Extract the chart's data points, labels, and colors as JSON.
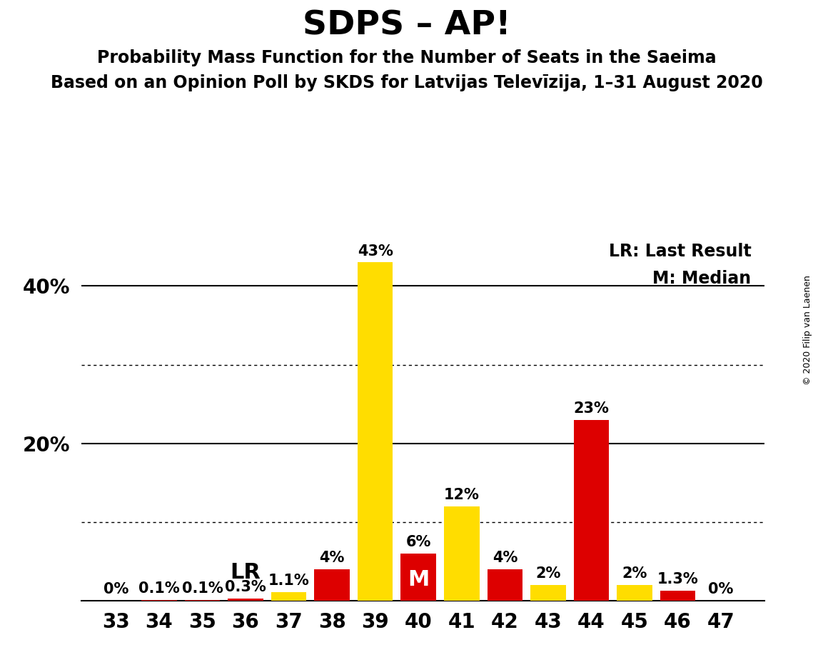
{
  "title": "SDPS – AP!",
  "subtitle1": "Probability Mass Function for the Number of Seats in the Saeima",
  "subtitle2": "Based on an Opinion Poll by SKDS for Latvijas Televīzija, 1–31 August 2020",
  "copyright": "© 2020 Filip van Laenen",
  "legend_line1": "LR: Last Result",
  "legend_line2": "M: Median",
  "seats": [
    33,
    34,
    35,
    36,
    37,
    38,
    39,
    40,
    41,
    42,
    43,
    44,
    45,
    46,
    47
  ],
  "values": [
    0.0,
    0.1,
    0.1,
    0.3,
    1.1,
    4.0,
    43.0,
    6.0,
    12.0,
    4.0,
    2.0,
    23.0,
    2.0,
    1.3,
    0.0
  ],
  "colors": [
    "#dd0000",
    "#dd0000",
    "#dd0000",
    "#dd0000",
    "#ffdd00",
    "#dd0000",
    "#ffdd00",
    "#dd0000",
    "#ffdd00",
    "#dd0000",
    "#ffdd00",
    "#dd0000",
    "#ffdd00",
    "#dd0000",
    "#dd0000"
  ],
  "labels": [
    "0%",
    "0.1%",
    "0.1%",
    "0.3%",
    "1.1%",
    "4%",
    "43%",
    "6%",
    "12%",
    "4%",
    "2%",
    "23%",
    "2%",
    "1.3%",
    "0%"
  ],
  "lr_seat": 36,
  "median_seat": 40,
  "solid_yticks": [
    20,
    40
  ],
  "dotted_yticks": [
    10,
    30
  ],
  "background_color": "#ffffff",
  "bar_color_yellow": "#ffdd00",
  "bar_color_red": "#dd0000",
  "title_fontsize": 34,
  "subtitle_fontsize": 17,
  "label_fontsize": 15
}
